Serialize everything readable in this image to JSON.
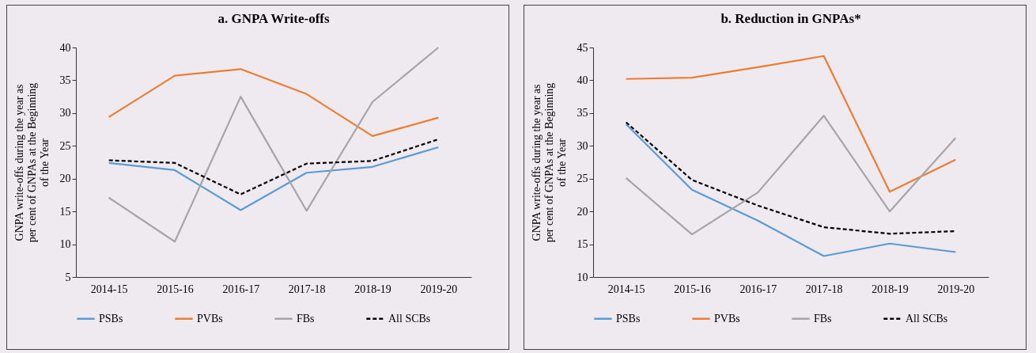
{
  "chart_data": [
    {
      "type": "line",
      "title": "a. GNPA Write-offs",
      "ylabel": "GNPA write-offs during the year as per cent of GNPAs at the Beginning of the Year",
      "categories": [
        "2014-15",
        "2015-16",
        "2016-17",
        "2017-18",
        "2018-19",
        "2019-20"
      ],
      "ylim": [
        5,
        40
      ],
      "yticks": [
        5,
        10,
        15,
        20,
        25,
        30,
        35,
        40
      ],
      "grid": false,
      "legend": "bottom",
      "series": [
        {
          "name": "PSBs",
          "color": "#5b9bd5",
          "line_style": "solid",
          "values": [
            22.4,
            21.3,
            15.2,
            20.9,
            21.8,
            24.8
          ]
        },
        {
          "name": "PVBs",
          "color": "#ed7d31",
          "line_style": "solid",
          "values": [
            29.4,
            35.7,
            36.7,
            32.9,
            26.5,
            29.3
          ]
        },
        {
          "name": "FBs",
          "color": "#a5a5a5",
          "line_style": "solid",
          "values": [
            17.1,
            10.4,
            32.5,
            15.1,
            31.7,
            40.0
          ]
        },
        {
          "name": "All SCBs",
          "color": "#000000",
          "line_style": "dashed",
          "values": [
            22.8,
            22.4,
            17.6,
            22.3,
            22.7,
            26.0
          ]
        }
      ]
    },
    {
      "type": "line",
      "title": "b. Reduction in GNPAs*",
      "ylabel": "GNPA write-offs during the year as per cent of GNPAs at the Beginning of the Year",
      "categories": [
        "2014-15",
        "2015-16",
        "2016-17",
        "2017-18",
        "2018-19",
        "2019-20"
      ],
      "ylim": [
        10,
        45
      ],
      "yticks": [
        10,
        15,
        20,
        25,
        30,
        35,
        40,
        45
      ],
      "grid": false,
      "legend": "bottom",
      "series": [
        {
          "name": "PSBs",
          "color": "#5b9bd5",
          "line_style": "solid",
          "values": [
            33.3,
            23.3,
            18.6,
            13.2,
            15.1,
            13.8
          ]
        },
        {
          "name": "PVBs",
          "color": "#ed7d31",
          "line_style": "solid",
          "values": [
            40.2,
            40.4,
            42.0,
            43.7,
            23.0,
            27.9
          ]
        },
        {
          "name": "FBs",
          "color": "#a5a5a5",
          "line_style": "solid",
          "values": [
            25.1,
            16.5,
            22.9,
            34.6,
            20.0,
            31.2
          ]
        },
        {
          "name": "All SCBs",
          "color": "#000000",
          "line_style": "dashed",
          "values": [
            33.6,
            24.8,
            20.9,
            17.6,
            16.6,
            17.0
          ]
        }
      ]
    }
  ]
}
